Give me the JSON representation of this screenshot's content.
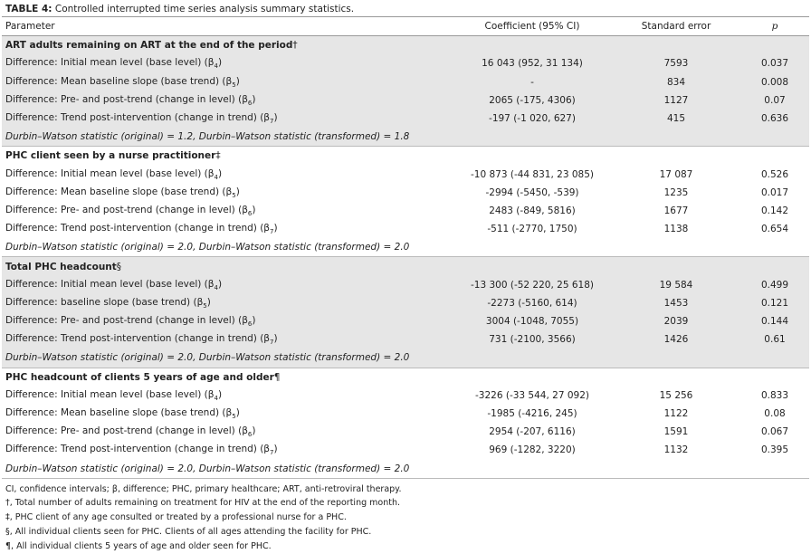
{
  "title": {
    "label": "TABLE 4:",
    "text": "Controlled interrupted time series analysis summary statistics."
  },
  "header": [
    "Parameter",
    "Coefficient (95% CI)",
    "Standard error",
    "p"
  ],
  "sections": [
    {
      "heading": [
        "ART adults remaining on ART at the end of the period",
        "†"
      ],
      "rows": [
        {
          "parameter": [
            "Difference: Initial mean level (base level) (β",
            "4",
            ")"
          ],
          "coefficient": "16 043 (952, 31 134)",
          "se": "7593",
          "p": "0.037"
        },
        {
          "parameter": [
            "Difference: Mean baseline slope (base trend) (β",
            "5",
            ")"
          ],
          "coefficient": "-",
          "se": "834",
          "p": "0.008"
        },
        {
          "parameter": [
            "Difference: Pre- and post-trend (change in level) (β",
            "6",
            ")"
          ],
          "coefficient": "2065 (-175, 4306)",
          "se": "1127",
          "p": "0.07"
        },
        {
          "parameter": [
            "Difference: Trend post-intervention (change in trend) (β",
            "7",
            ")"
          ],
          "coefficient": "-197 (-1 020, 627)",
          "se": "415",
          "p": "0.636"
        }
      ],
      "note": "Durbin–Watson statistic (original) = 1.2, Durbin–Watson statistic (transformed) = 1.8"
    },
    {
      "heading": [
        "PHC client seen by a nurse practitioner",
        "‡"
      ],
      "rows": [
        {
          "parameter": [
            "Difference: Initial mean level (base level) (β",
            "4",
            ")"
          ],
          "coefficient": "-10 873 (-44 831, 23 085)",
          "se": "17 087",
          "p": "0.526"
        },
        {
          "parameter": [
            "Difference: Mean baseline slope (base trend) (β",
            "5",
            ")"
          ],
          "coefficient": "-2994 (-5450, -539)",
          "se": "1235",
          "p": "0.017"
        },
        {
          "parameter": [
            "Difference: Pre- and post-trend (change in level) (β",
            "6",
            ")"
          ],
          "coefficient": "2483 (-849, 5816)",
          "se": "1677",
          "p": "0.142"
        },
        {
          "parameter": [
            "Difference: Trend post-intervention (change in trend) (β",
            "7",
            ")"
          ],
          "coefficient": "-511 (-2770, 1750)",
          "se": "1138",
          "p": "0.654"
        }
      ],
      "note": "Durbin–Watson statistic (original) = 2.0, Durbin–Watson statistic (transformed) = 2.0"
    },
    {
      "heading": [
        "Total PHC headcount",
        "§"
      ],
      "rows": [
        {
          "parameter": [
            "Difference: Initial mean level (base level) (β",
            "4",
            ")"
          ],
          "coefficient": "-13 300 (-52 220, 25 618)",
          "se": "19 584",
          "p": "0.499"
        },
        {
          "parameter": [
            "Difference: baseline slope (base trend) (β",
            "5",
            ")"
          ],
          "coefficient": "-2273 (-5160, 614)",
          "se": "1453",
          "p": "0.121"
        },
        {
          "parameter": [
            "Difference: Pre- and post-trend (change in level) (β",
            "6",
            ")"
          ],
          "coefficient": "3004 (-1048, 7055)",
          "se": "2039",
          "p": "0.144"
        },
        {
          "parameter": [
            "Difference: Trend post-intervention (change in trend) (β",
            "7",
            ")"
          ],
          "coefficient": "731 (-2100, 3566)",
          "se": "1426",
          "p": "0.61"
        }
      ],
      "note": "Durbin–Watson statistic (original) = 2.0, Durbin–Watson statistic (transformed) = 2.0"
    },
    {
      "heading": [
        "PHC headcount of clients 5 years of age and older",
        "¶"
      ],
      "rows": [
        {
          "parameter": [
            "Difference: Initial mean level (base level) (β",
            "4",
            ")"
          ],
          "coefficient": "-3226 (-33 544, 27 092)",
          "se": "15 256",
          "p": "0.833"
        },
        {
          "parameter": [
            "Difference: Mean baseline slope (base trend) (β",
            "5",
            ")"
          ],
          "coefficient": "-1985 (-4216, 245)",
          "se": "1122",
          "p": "0.08"
        },
        {
          "parameter": [
            "Difference: Pre- and post-trend (change in level) (β",
            "6",
            ")"
          ],
          "coefficient": "2954 (-207, 6116)",
          "se": "1591",
          "p": "0.067"
        },
        {
          "parameter": [
            "Difference: Trend post-intervention (change in trend) (β",
            "7",
            ")"
          ],
          "coefficient": "969 (-1282, 3220)",
          "se": "1132",
          "p": "0.395"
        }
      ],
      "note": "Durbin–Watson statistic (original) = 2.0, Durbin–Watson statistic (transformed) = 2.0"
    }
  ],
  "footnotes": [
    "CI, confidence intervals; β, difference; PHC, primary healthcare; ART, anti-retroviral therapy.",
    "†, Total number of adults remaining on treatment for HIV at the end of the reporting month.",
    "‡, PHC client of any age consulted or treated by a professional nurse for a PHC.",
    "§, All individual clients seen for PHC. Clients of all ages attending the facility for PHC.",
    "¶, All individual clients 5 years of age and older seen for PHC."
  ]
}
